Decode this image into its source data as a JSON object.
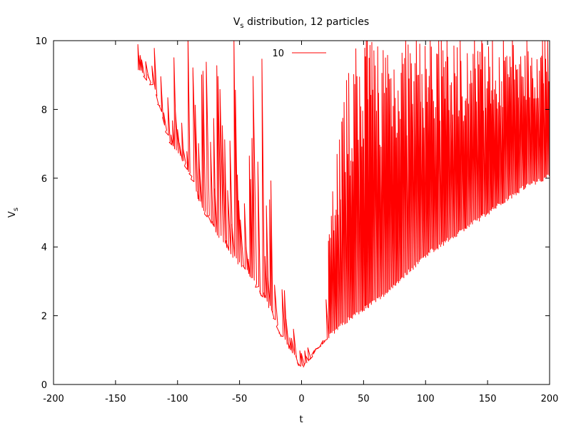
{
  "chart_data": {
    "type": "line",
    "title": "V_s distribution, 12 particles",
    "title_main": "V",
    "title_sub": "s",
    "title_rest": " distribution, 12 particles",
    "xlabel": "t",
    "ylabel_main": "V",
    "ylabel_sub": "s",
    "xlim": [
      -200,
      200
    ],
    "ylim": [
      0,
      10
    ],
    "xticks": [
      -200,
      -150,
      -100,
      -50,
      0,
      50,
      100,
      150,
      200
    ],
    "yticks": [
      0,
      2,
      4,
      6,
      8,
      10
    ],
    "legend_position": "top-center",
    "grid": false,
    "series": [
      {
        "name": "10",
        "color": "#ff0000",
        "envelope_lower": [
          {
            "x": -132,
            "y": 9.1
          },
          {
            "x": -120,
            "y": 8.6
          },
          {
            "x": -107,
            "y": 7.0
          },
          {
            "x": -92,
            "y": 6.2
          },
          {
            "x": -82,
            "y": 5.2
          },
          {
            "x": -68,
            "y": 4.3
          },
          {
            "x": -55,
            "y": 3.6
          },
          {
            "x": -44,
            "y": 3.2
          },
          {
            "x": -35,
            "y": 2.7
          },
          {
            "x": -25,
            "y": 2.1
          },
          {
            "x": -16,
            "y": 1.3
          },
          {
            "x": -8,
            "y": 0.8
          },
          {
            "x": -1,
            "y": 0.4
          },
          {
            "x": 5,
            "y": 0.6
          },
          {
            "x": 12,
            "y": 1.0
          },
          {
            "x": 20,
            "y": 1.3
          },
          {
            "x": 40,
            "y": 1.9
          },
          {
            "x": 65,
            "y": 2.5
          },
          {
            "x": 100,
            "y": 3.7
          },
          {
            "x": 145,
            "y": 4.8
          },
          {
            "x": 180,
            "y": 5.7
          },
          {
            "x": 200,
            "y": 6.0
          }
        ],
        "envelope_upper": [
          {
            "x": -134,
            "y": 10
          },
          {
            "x": -30,
            "y": 10
          },
          {
            "x": -25,
            "y": 6.5
          },
          {
            "x": -15,
            "y": 3.5
          },
          {
            "x": -10,
            "y": 2.5
          },
          {
            "x": 0,
            "y": 0.9
          },
          {
            "x": 10,
            "y": 1.5
          },
          {
            "x": 18,
            "y": 3.0
          },
          {
            "x": 25,
            "y": 6.0
          },
          {
            "x": 35,
            "y": 8.5
          },
          {
            "x": 48,
            "y": 10
          },
          {
            "x": 200,
            "y": 10
          }
        ]
      }
    ]
  }
}
